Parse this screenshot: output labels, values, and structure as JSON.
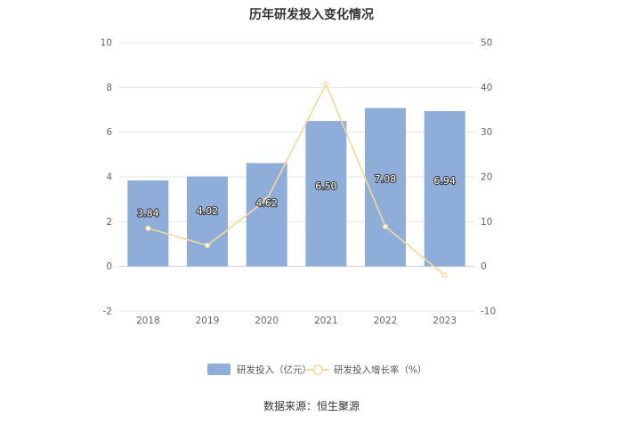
{
  "chart_data": {
    "type": "bar",
    "title": "历年研发投入变化情况",
    "categories": [
      "2018",
      "2019",
      "2020",
      "2021",
      "2022",
      "2023"
    ],
    "series": [
      {
        "name": "研发投入（亿元）",
        "type": "bar",
        "axis": "left",
        "values": [
          3.84,
          4.02,
          4.62,
          6.5,
          7.08,
          6.94
        ],
        "labels": [
          "3.84",
          "4.02",
          "4.62",
          "6.50",
          "7.08",
          "6.94"
        ],
        "color": "#8eadd9"
      },
      {
        "name": "研发投入增长率（%）",
        "type": "line",
        "axis": "right",
        "values": [
          8.5,
          4.7,
          14.9,
          40.7,
          8.9,
          -2.0
        ],
        "color": "#f5d79e"
      }
    ],
    "y_left": {
      "ylim": [
        -2,
        10
      ],
      "ticks": [
        "-2",
        "0",
        "2",
        "4",
        "6",
        "8",
        "10"
      ]
    },
    "y_right": {
      "ylim": [
        -10,
        50
      ],
      "ticks": [
        "-10",
        "0",
        "10",
        "20",
        "30",
        "40",
        "50"
      ]
    },
    "grid": true,
    "legend_position": "bottom-center",
    "source": "数据来源：恒生聚源"
  }
}
